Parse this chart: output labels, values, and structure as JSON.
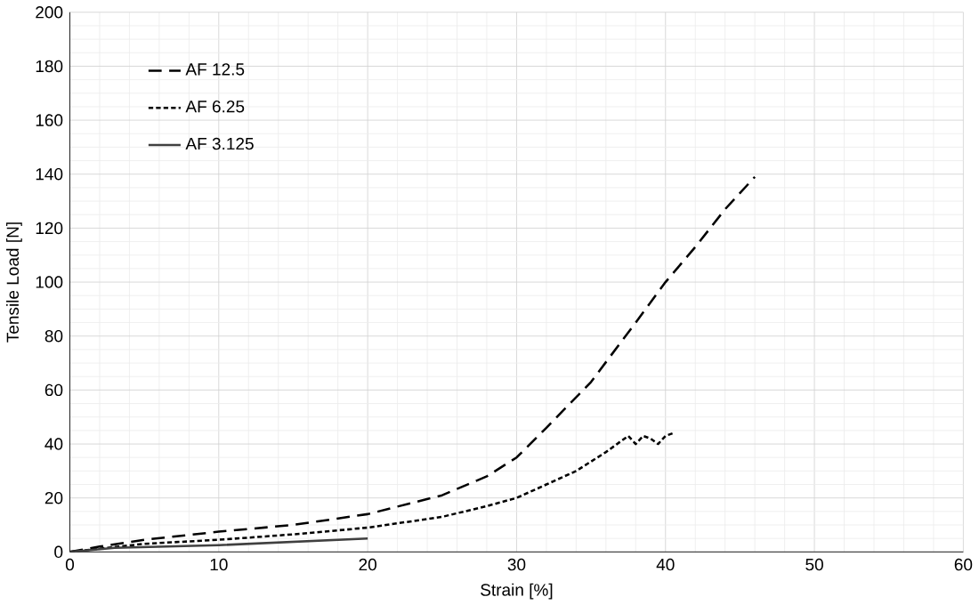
{
  "chart_data": {
    "type": "line",
    "xlabel": "Strain [%]",
    "ylabel": "Tensile Load [N]",
    "xlim": [
      0,
      60
    ],
    "ylim": [
      0,
      200
    ],
    "xticks": [
      0,
      10,
      20,
      30,
      40,
      50,
      60
    ],
    "yticks": [
      0,
      20,
      40,
      60,
      80,
      100,
      120,
      140,
      160,
      180,
      200
    ],
    "grid": true,
    "legend": "top left",
    "marker": "none",
    "series": [
      {
        "name": "AF 12.5",
        "color": "#000000",
        "line_style": "dashed",
        "x": [
          0,
          2,
          5,
          10,
          15,
          20,
          25,
          28,
          30,
          32,
          35,
          38,
          40,
          42,
          44,
          46
        ],
        "values": [
          0,
          2,
          4.5,
          7.5,
          10,
          14,
          21,
          28,
          35,
          46,
          63,
          85,
          100,
          113,
          127,
          139
        ]
      },
      {
        "name": "AF 6.25",
        "color": "#000000",
        "line_style": "dotted",
        "x": [
          0,
          5,
          10,
          15,
          20,
          25,
          28,
          30,
          32,
          34,
          36,
          37,
          37.5,
          38,
          38.5,
          39,
          39.5,
          40,
          40.5
        ],
        "values": [
          0,
          3,
          4.5,
          6.5,
          9,
          13,
          17,
          20,
          25,
          30,
          37,
          41,
          43,
          40,
          43,
          42,
          40,
          43,
          44
        ]
      },
      {
        "name": "AF 3.125",
        "color": "#404040",
        "line_style": "solid",
        "x": [
          0,
          3,
          10,
          20
        ],
        "values": [
          0,
          1.5,
          2.5,
          5
        ]
      }
    ]
  }
}
